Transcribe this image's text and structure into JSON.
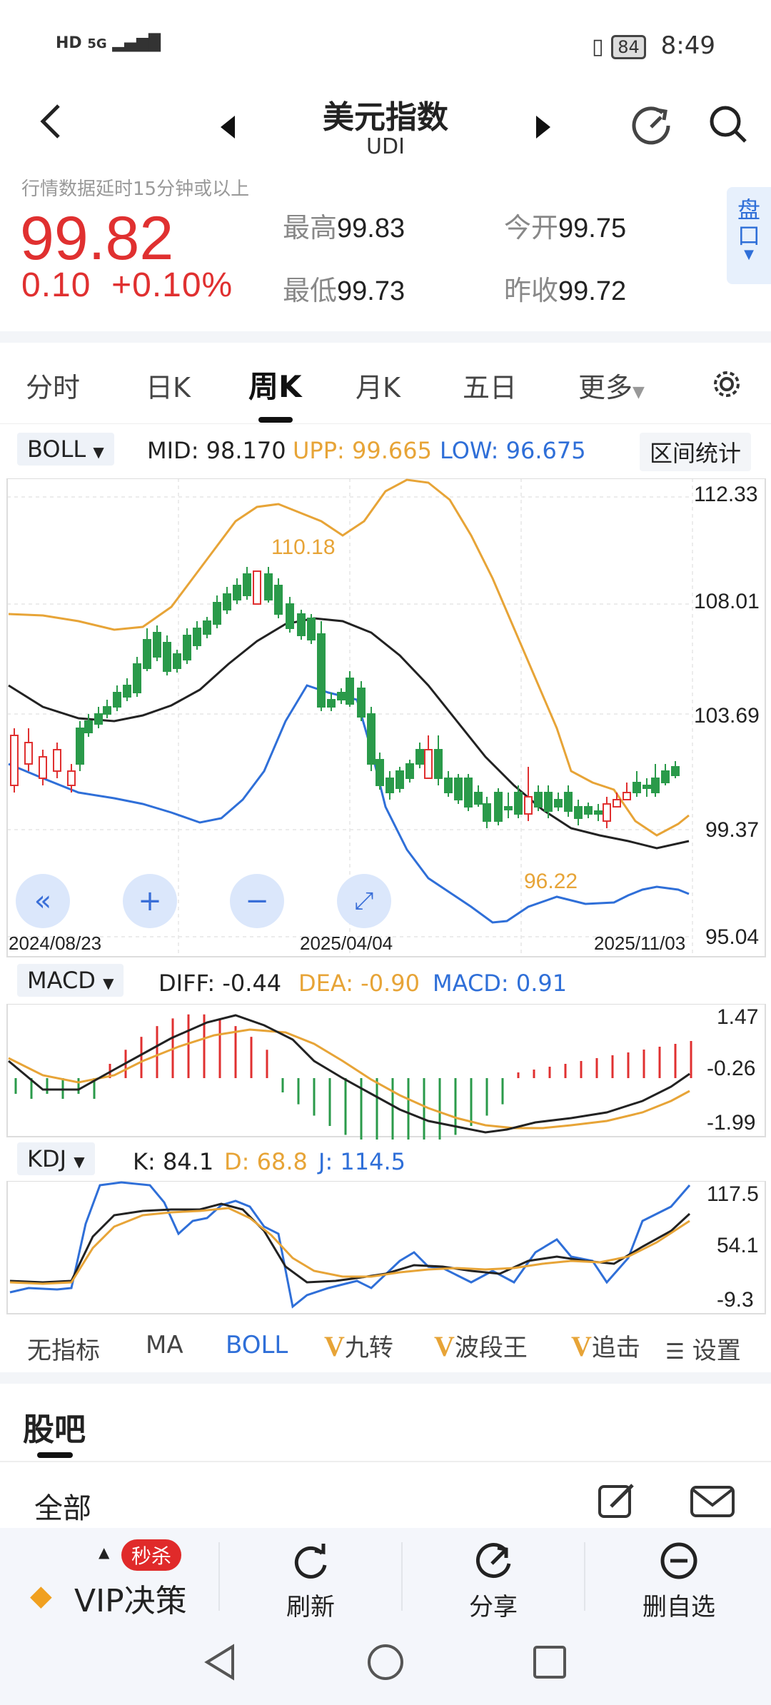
{
  "status_bar": {
    "network": "HD 5G",
    "battery": "84",
    "time": "8:49"
  },
  "header": {
    "title": "美元指数",
    "subtitle": "UDI"
  },
  "quote": {
    "delay_notice": "行情数据延时15分钟或以上",
    "price": "99.82",
    "change": "0.10  +0.10%",
    "high_label": "最高",
    "high": "99.83",
    "open_label": "今开",
    "open": "99.75",
    "low_label": "最低",
    "low": "99.73",
    "prev_close_label": "昨收",
    "prev_close": "99.72",
    "panel_button": "盘口"
  },
  "period_tabs": [
    "分时",
    "日K",
    "周K",
    "月K",
    "五日",
    "更多"
  ],
  "active_period": "周K",
  "boll": {
    "selector": "BOLL",
    "mid_label": "MID:",
    "mid": "98.170",
    "upp_label": "UPP:",
    "upp": "99.665",
    "low_label": "LOW:",
    "low": "96.675",
    "range_button": "区间统计"
  },
  "main_chart": {
    "y_ticks": [
      "112.33",
      "108.01",
      "103.69",
      "99.37",
      "95.04"
    ],
    "x_dates": [
      "2024/08/23",
      "2025/04/04",
      "2025/11/03"
    ],
    "max_label": "110.18",
    "min_label": "96.22"
  },
  "macd": {
    "selector": "MACD",
    "diff": "DIFF: -0.44",
    "dea": "DEA: -0.90",
    "macd": "MACD: 0.91",
    "y_ticks": [
      "1.47",
      "-0.26",
      "-1.99"
    ]
  },
  "kdj": {
    "selector": "KDJ",
    "k": "K: 84.1",
    "d": "D: 68.8",
    "j": "J: 114.5",
    "y_ticks": [
      "117.5",
      "54.1",
      "-9.3"
    ]
  },
  "indicator_tabs": [
    {
      "label": "无指标",
      "vip": false
    },
    {
      "label": "MA",
      "vip": false
    },
    {
      "label": "BOLL",
      "vip": false
    },
    {
      "label": "九转",
      "vip": true
    },
    {
      "label": "波段王",
      "vip": true
    },
    {
      "label": "追击",
      "vip": true
    }
  ],
  "indicator_settings": "设置",
  "guba": {
    "title": "股吧",
    "filter": "全部"
  },
  "bottom_bar": {
    "vip_badge": "秒杀",
    "vip_label": "VIP决策",
    "refresh": "刷新",
    "share": "分享",
    "remove": "删自选"
  },
  "colors": {
    "up": "#e03030",
    "down": "#2a9a4a",
    "mid": "#222222",
    "upper": "#e7a437",
    "lower": "#2f6fd8"
  }
}
